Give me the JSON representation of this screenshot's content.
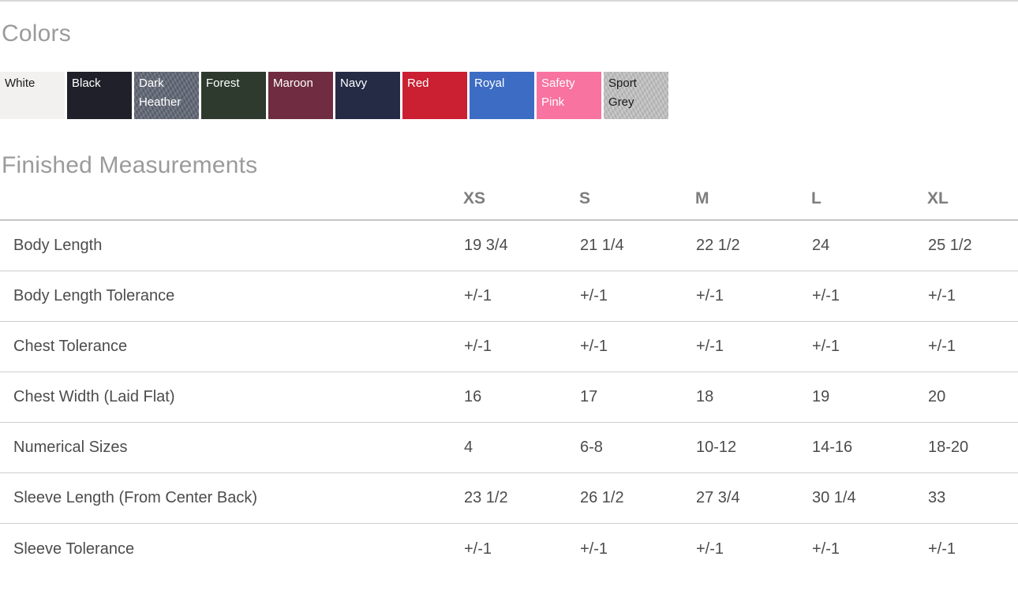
{
  "colors_section": {
    "title": "Colors",
    "swatches": [
      {
        "name": "White",
        "bg": "#f2f1ef",
        "text_color": "#1a1a1a"
      },
      {
        "name": "Black",
        "bg": "#20202a",
        "text_color": "#ffffff"
      },
      {
        "name": "Dark Heather",
        "bg": "#5d6371",
        "text_color": "#ffffff"
      },
      {
        "name": "Forest",
        "bg": "#2e3a2e",
        "text_color": "#ffffff"
      },
      {
        "name": "Maroon",
        "bg": "#702c41",
        "text_color": "#ffffff"
      },
      {
        "name": "Navy",
        "bg": "#252b45",
        "text_color": "#ffffff"
      },
      {
        "name": "Red",
        "bg": "#ca2032",
        "text_color": "#ffffff"
      },
      {
        "name": "Royal",
        "bg": "#3c6cc4",
        "text_color": "#ffffff"
      },
      {
        "name": "Safety Pink",
        "bg": "#f8739f",
        "text_color": "#ffffff"
      },
      {
        "name": "Sport Grey",
        "bg": "#c2c1c1",
        "text_color": "#1a1a1a"
      }
    ]
  },
  "measurements_section": {
    "title": "Finished Measurements",
    "table": {
      "columns": [
        "XS",
        "S",
        "M",
        "L",
        "XL"
      ],
      "rows": [
        {
          "label": "Body Length",
          "values": [
            "19 3/4",
            "21 1/4",
            "22 1/2",
            "24",
            "25 1/2"
          ]
        },
        {
          "label": "Body Length Tolerance",
          "values": [
            "+/-1",
            "+/-1",
            "+/-1",
            "+/-1",
            "+/-1"
          ]
        },
        {
          "label": "Chest Tolerance",
          "values": [
            "+/-1",
            "+/-1",
            "+/-1",
            "+/-1",
            "+/-1"
          ]
        },
        {
          "label": "Chest Width (Laid Flat)",
          "values": [
            "16",
            "17",
            "18",
            "19",
            "20"
          ]
        },
        {
          "label": "Numerical Sizes",
          "values": [
            "4",
            "6-8",
            "10-12",
            "14-16",
            "18-20"
          ]
        },
        {
          "label": "Sleeve Length (From Center Back)",
          "values": [
            "23 1/2",
            "26 1/2",
            "27 3/4",
            "30 1/4",
            "33"
          ]
        },
        {
          "label": "Sleeve Tolerance",
          "values": [
            "+/-1",
            "+/-1",
            "+/-1",
            "+/-1",
            "+/-1"
          ]
        }
      ]
    }
  }
}
